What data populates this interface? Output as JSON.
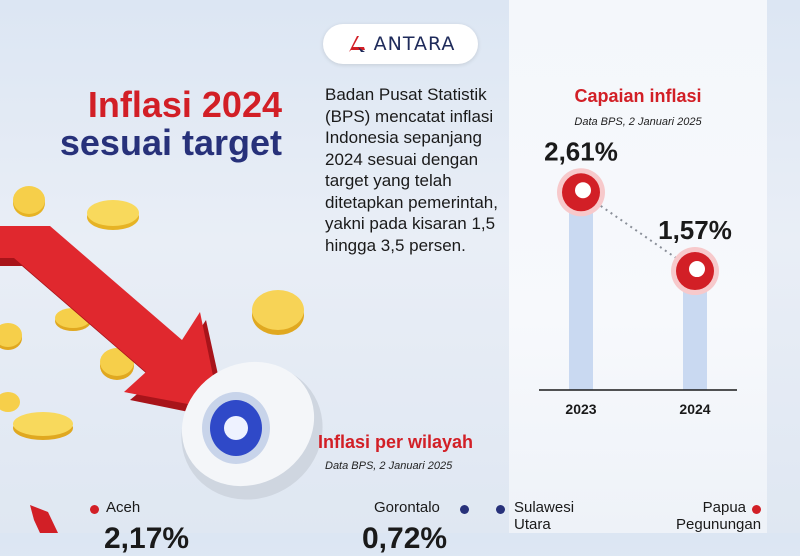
{
  "header": {
    "logo_text": "ANTARA"
  },
  "title": {
    "line1": "Inflasi 2024",
    "line2": "sesuai target"
  },
  "description": "Badan Pusat Statistik (BPS) mencatat inflasi Indonesia sepanjang 2024 sesuai dengan target yang telah ditetapkan pemerintah, yakni pada kisaran 1,5 hingga 3,5 persen.",
  "chart_data": {
    "type": "line",
    "title": "Capaian inflasi",
    "subtitle": "Data BPS, 2 Januari 2025",
    "categories": [
      "2023",
      "2024"
    ],
    "values": [
      2.61,
      1.57
    ],
    "value_labels": [
      "2,61%",
      "1,57%"
    ],
    "ylim": [
      0,
      3.3
    ],
    "grid": false
  },
  "regions": {
    "title": "Inflasi per wilayah",
    "subtitle": "Data BPS, 2 Januari 2025",
    "items": [
      {
        "label": "Aceh",
        "value": "2,17%"
      },
      {
        "label": "Gorontalo",
        "value": "0,72%"
      },
      {
        "label": "Sulawesi Utara",
        "value": ""
      },
      {
        "label": "Papua Pegunungan",
        "value": ""
      }
    ]
  },
  "colors": {
    "accent_red": "#d21f26",
    "navy": "#27317a",
    "bar_blue": "#c9d9f1"
  }
}
